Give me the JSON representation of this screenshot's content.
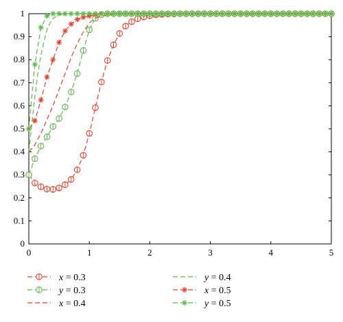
{
  "chart_data": {
    "type": "line",
    "title": "",
    "xlabel": "",
    "ylabel": "",
    "xlim": [
      0,
      5
    ],
    "ylim": [
      0,
      1
    ],
    "xticks": [
      0,
      1,
      2,
      3,
      4,
      5
    ],
    "yticks": [
      0,
      0.1,
      0.2,
      0.3,
      0.4,
      0.5,
      0.6,
      0.7,
      0.8,
      0.9,
      1
    ],
    "xtick_labels": [
      "0",
      "1",
      "2",
      "3",
      "4",
      "5"
    ],
    "ytick_labels": [
      "0",
      "0.1",
      "0.2",
      "0.3",
      "0.4",
      "0.5",
      "0.6",
      "0.7",
      "0.8",
      "0.9",
      "1"
    ],
    "grid": false,
    "legend_position": "bottom",
    "colors": {
      "red": "#e8402a",
      "green": "#5cb84a"
    },
    "series": [
      {
        "name": "x = 0.3",
        "var": "x",
        "val": "0.3",
        "color": "red",
        "marker": "circle",
        "x": [
          0,
          0.1,
          0.2,
          0.3,
          0.4,
          0.5,
          0.6,
          0.7,
          0.8,
          0.9,
          1.0,
          1.1,
          1.2,
          1.3,
          1.4,
          1.5,
          1.6,
          1.7,
          1.8,
          1.9,
          2.0,
          2.1,
          2.2,
          2.3,
          2.4,
          2.5,
          2.6,
          2.7,
          2.8,
          2.9,
          3.0,
          3.1,
          3.2,
          3.3,
          3.4,
          3.5,
          3.6,
          3.7,
          3.8,
          3.9,
          4.0,
          4.1,
          4.2,
          4.3,
          4.4,
          4.5,
          4.6,
          4.7,
          4.8,
          4.9,
          5.0
        ],
        "y": [
          0.3,
          0.265,
          0.248,
          0.238,
          0.237,
          0.243,
          0.257,
          0.28,
          0.322,
          0.385,
          0.48,
          0.592,
          0.703,
          0.797,
          0.865,
          0.914,
          0.946,
          0.965,
          0.978,
          0.986,
          0.991,
          0.995,
          0.997,
          0.998,
          0.999,
          1,
          1,
          1,
          1,
          1,
          1,
          1,
          1,
          1,
          1,
          1,
          1,
          1,
          1,
          1,
          1,
          1,
          1,
          1,
          1,
          1,
          1,
          1,
          1,
          1,
          1
        ]
      },
      {
        "name": "y = 0.3",
        "var": "y",
        "val": "0.3",
        "color": "green",
        "marker": "circle",
        "x": [
          0,
          0.1,
          0.2,
          0.3,
          0.4,
          0.5,
          0.6,
          0.7,
          0.8,
          0.9,
          1.0,
          1.1,
          1.2,
          1.3,
          1.4,
          1.5,
          1.6,
          1.7,
          1.8,
          1.9,
          2.0,
          2.1,
          2.2,
          2.3,
          2.4,
          2.5,
          2.6,
          2.7,
          2.8,
          2.9,
          3.0,
          3.1,
          3.2,
          3.3,
          3.4,
          3.5,
          3.6,
          3.7,
          3.8,
          3.9,
          4.0,
          4.1,
          4.2,
          4.3,
          4.4,
          4.5,
          4.6,
          4.7,
          4.8,
          4.9,
          5.0
        ],
        "y": [
          0.3,
          0.37,
          0.425,
          0.465,
          0.51,
          0.545,
          0.595,
          0.66,
          0.74,
          0.84,
          0.93,
          0.98,
          0.995,
          1,
          1,
          1,
          1,
          1,
          1,
          1,
          1,
          1,
          1,
          1,
          1,
          1,
          1,
          1,
          1,
          1,
          1,
          1,
          1,
          1,
          1,
          1,
          1,
          1,
          1,
          1,
          1,
          1,
          1,
          1,
          1,
          1,
          1,
          1,
          1,
          1,
          1
        ]
      },
      {
        "name": "x = 0.4",
        "var": "x",
        "val": "0.4",
        "color": "red",
        "marker": "none",
        "x": [
          0,
          0.1,
          0.2,
          0.3,
          0.4,
          0.5,
          0.6,
          0.7,
          0.8,
          0.9,
          1.0,
          1.1,
          1.2,
          1.3,
          1.5,
          2.0,
          3.0,
          4.0,
          5.0
        ],
        "y": [
          0.4,
          0.43,
          0.48,
          0.54,
          0.6,
          0.67,
          0.74,
          0.81,
          0.87,
          0.92,
          0.96,
          0.98,
          0.99,
          0.995,
          1,
          1,
          1,
          1,
          1
        ]
      },
      {
        "name": "y = 0.4",
        "var": "y",
        "val": "0.4",
        "color": "green",
        "marker": "none",
        "x": [
          0,
          0.05,
          0.1,
          0.15,
          0.2,
          0.25,
          0.3,
          0.35,
          0.4,
          0.5,
          0.6,
          0.7,
          1.0,
          2.0,
          3.0,
          4.0,
          5.0
        ],
        "y": [
          0.4,
          0.52,
          0.64,
          0.74,
          0.82,
          0.88,
          0.93,
          0.96,
          0.98,
          0.995,
          1,
          1,
          1,
          1,
          1,
          1,
          1
        ]
      },
      {
        "name": "x = 0.5",
        "var": "x",
        "val": "0.5",
        "color": "red",
        "marker": "asterisk",
        "x": [
          0,
          0.1,
          0.2,
          0.3,
          0.4,
          0.5,
          0.6,
          0.7,
          0.8,
          0.9,
          1.0,
          1.1,
          1.2,
          1.3,
          1.4,
          1.5,
          1.6,
          1.7,
          1.8,
          1.9,
          2.0,
          2.1,
          2.2,
          2.3,
          2.4,
          2.5,
          2.6,
          2.7,
          2.8,
          2.9,
          3.0,
          3.1,
          3.2,
          3.3,
          3.4,
          3.5,
          3.6,
          3.7,
          3.8,
          3.9,
          4.0,
          4.1,
          4.2,
          4.3,
          4.4,
          4.5,
          4.6,
          4.7,
          4.8,
          4.9,
          5.0
        ],
        "y": [
          0.5,
          0.535,
          0.625,
          0.725,
          0.8,
          0.875,
          0.925,
          0.955,
          0.975,
          0.985,
          0.99,
          0.995,
          1,
          1,
          1,
          1,
          1,
          1,
          1,
          1,
          1,
          1,
          1,
          1,
          1,
          1,
          1,
          1,
          1,
          1,
          1,
          1,
          1,
          1,
          1,
          1,
          1,
          1,
          1,
          1,
          1,
          1,
          1,
          1,
          1,
          1,
          1,
          1,
          1,
          1,
          1
        ]
      },
      {
        "name": "y = 0.5",
        "var": "y",
        "val": "0.5",
        "color": "green",
        "marker": "asterisk",
        "x": [
          0,
          0.1,
          0.2,
          0.3,
          0.4,
          0.5,
          0.6,
          0.7,
          0.8,
          0.9,
          1.0,
          1.1,
          1.2,
          1.3,
          1.4,
          1.5,
          1.6,
          1.7,
          1.8,
          1.9,
          2.0,
          2.1,
          2.2,
          2.3,
          2.4,
          2.5,
          2.6,
          2.7,
          2.8,
          2.9,
          3.0,
          3.1,
          3.2,
          3.3,
          3.4,
          3.5,
          3.6,
          3.7,
          3.8,
          3.9,
          4.0,
          4.1,
          4.2,
          4.3,
          4.4,
          4.5,
          4.6,
          4.7,
          4.8,
          4.9,
          5.0
        ],
        "y": [
          0.5,
          0.78,
          0.94,
          0.99,
          1,
          1,
          1,
          1,
          1,
          1,
          1,
          1,
          1,
          1,
          1,
          1,
          1,
          1,
          1,
          1,
          1,
          1,
          1,
          1,
          1,
          1,
          1,
          1,
          1,
          1,
          1,
          1,
          1,
          1,
          1,
          1,
          1,
          1,
          1,
          1,
          1,
          1,
          1,
          1,
          1,
          1,
          1,
          1,
          1,
          1,
          1
        ]
      }
    ]
  }
}
